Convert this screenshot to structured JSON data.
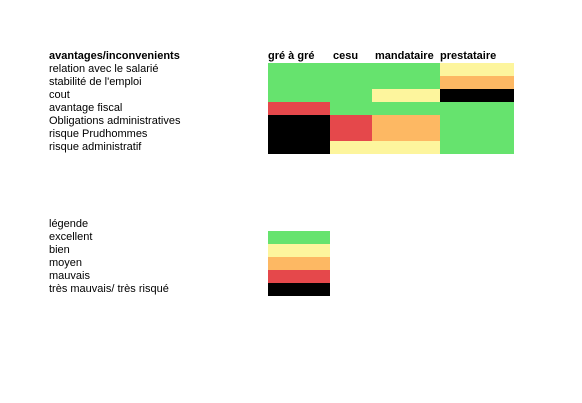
{
  "header": {
    "title": "avantages/inconvenients",
    "columns": [
      "gré à gré",
      "cesu",
      "mandataire",
      "prestataire"
    ]
  },
  "rows": [
    {
      "label": "relation avec le salarié",
      "ratings": [
        "excellent",
        "excellent",
        "excellent",
        "bien"
      ]
    },
    {
      "label": "stabilité de l'emploi",
      "ratings": [
        "excellent",
        "excellent",
        "excellent",
        "moyen"
      ]
    },
    {
      "label": "cout",
      "ratings": [
        "excellent",
        "excellent",
        "bien",
        "tres_mauvais"
      ]
    },
    {
      "label": "avantage fiscal",
      "ratings": [
        "mauvais",
        "excellent",
        "excellent",
        "excellent"
      ]
    },
    {
      "label": "Obligations administratives",
      "ratings": [
        "tres_mauvais",
        "mauvais",
        "moyen",
        "excellent"
      ]
    },
    {
      "label": "risque Prudhommes",
      "ratings": [
        "tres_mauvais",
        "mauvais",
        "moyen",
        "excellent"
      ]
    },
    {
      "label": "risque administratif",
      "ratings": [
        "tres_mauvais",
        "bien",
        "bien",
        "excellent"
      ]
    }
  ],
  "legend": {
    "title": "légende",
    "items": [
      {
        "key": "excellent",
        "label": "excellent"
      },
      {
        "key": "bien",
        "label": "bien"
      },
      {
        "key": "moyen",
        "label": "moyen"
      },
      {
        "key": "mauvais",
        "label": "mauvais"
      },
      {
        "key": "tres_mauvais",
        "label": "très mauvais/ très risqué"
      }
    ]
  },
  "colors": {
    "excellent": "#66e36e",
    "bien": "#fdf59d",
    "moyen": "#fdb863",
    "mauvais": "#e5484b",
    "tres_mauvais": "#000000"
  }
}
